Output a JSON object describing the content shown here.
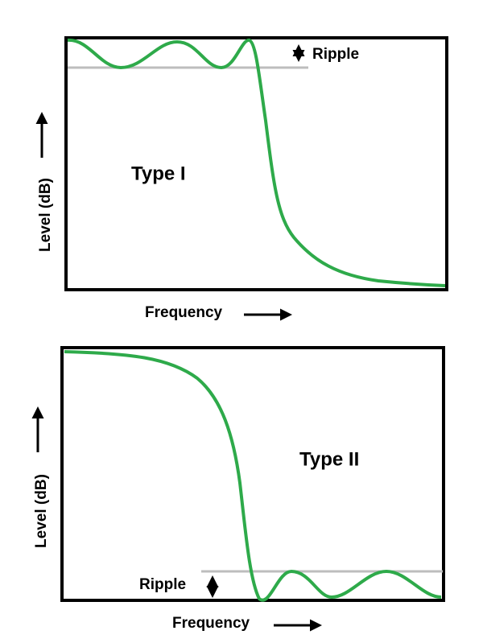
{
  "panels": [
    {
      "label": "Type I",
      "y_axis_label": "Level (dB)",
      "x_axis_label": "Frequency",
      "ripple_label": "Ripple"
    },
    {
      "label": "Type II",
      "y_axis_label": "Level (dB)",
      "x_axis_label": "Frequency",
      "ripple_label": "Ripple"
    }
  ]
}
